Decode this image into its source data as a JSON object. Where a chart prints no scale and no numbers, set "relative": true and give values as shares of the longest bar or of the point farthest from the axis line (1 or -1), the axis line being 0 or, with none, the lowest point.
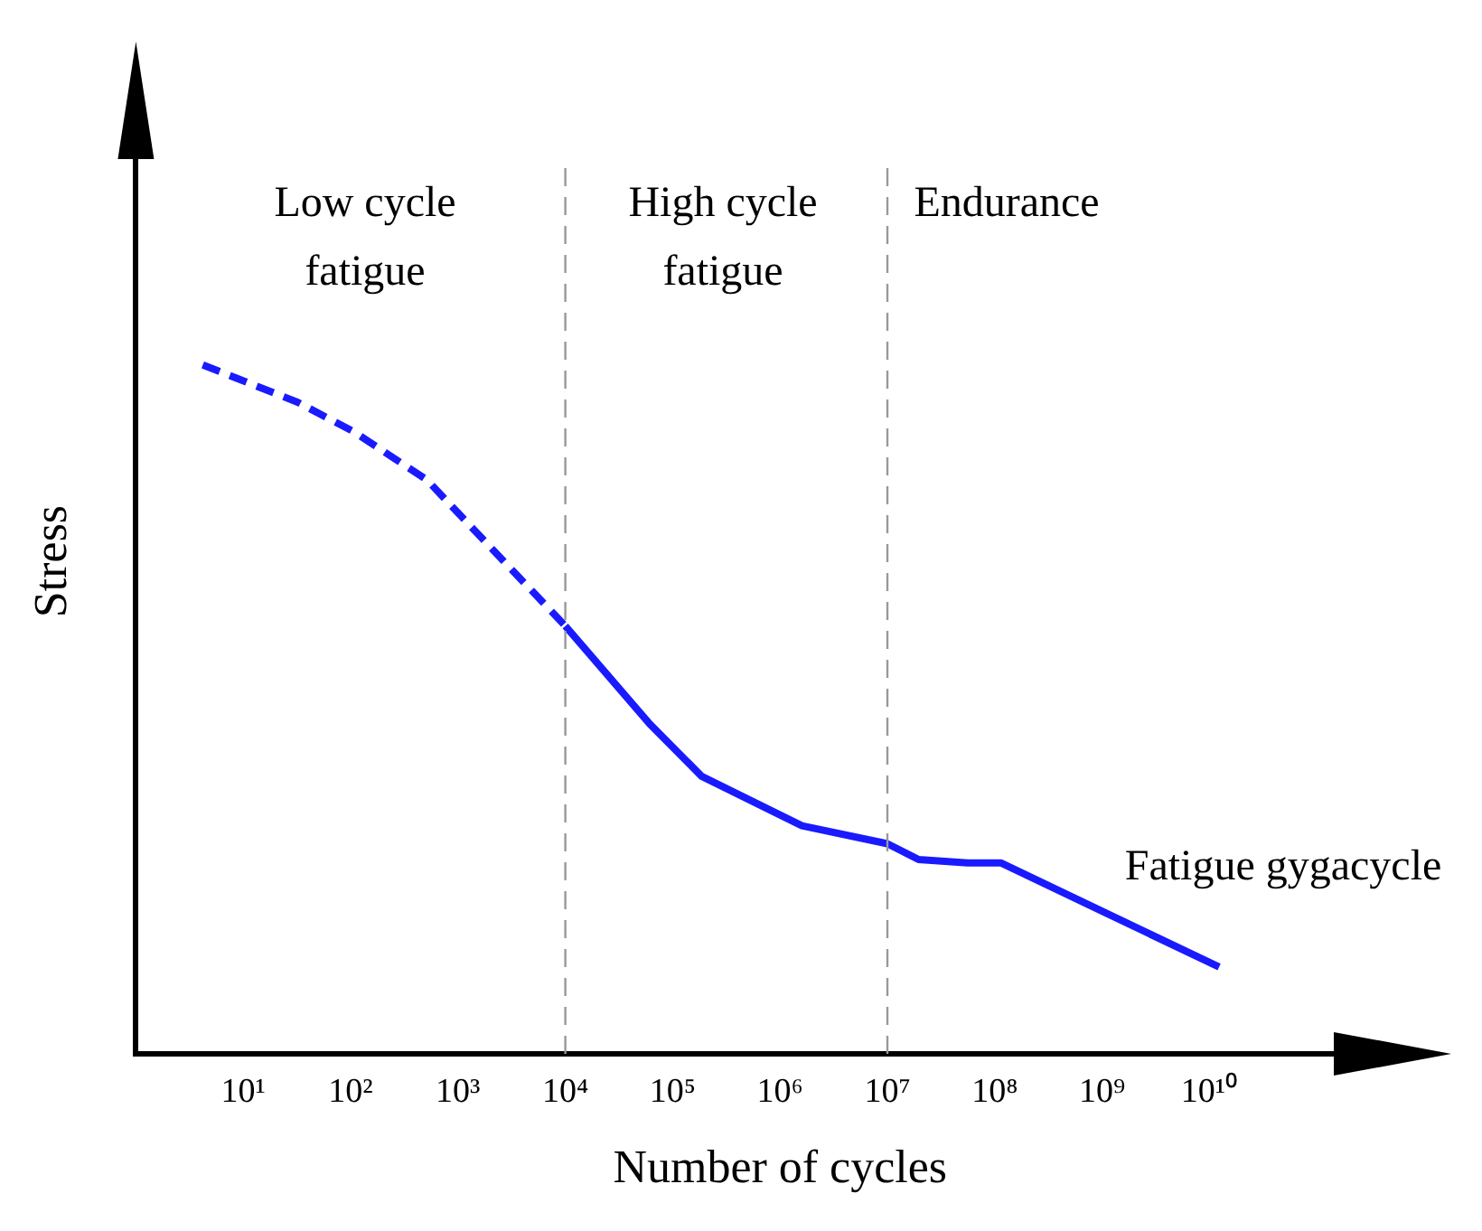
{
  "chart_data": {
    "type": "line",
    "relative": true,
    "log": "x",
    "xlabel": "Number of cycles",
    "ylabel": "Stress",
    "xlim": [
      1,
      1000000000000
    ],
    "xticks": [
      {
        "value": 10,
        "label": "10¹"
      },
      {
        "value": 100,
        "label": "10²"
      },
      {
        "value": 1000,
        "label": "10³"
      },
      {
        "value": 10000,
        "label": "10⁴"
      },
      {
        "value": 100000,
        "label": "10⁵"
      },
      {
        "value": 1000000,
        "label": "10⁶"
      },
      {
        "value": 10000000,
        "label": "10⁷"
      },
      {
        "value": 100000000,
        "label": "10⁸"
      },
      {
        "value": 1000000000,
        "label": "10⁹"
      },
      {
        "value": 10000000000,
        "label": "10¹⁰"
      }
    ],
    "grid": false,
    "legend": false,
    "marker": "none",
    "series": [
      {
        "color": "#1a1aff",
        "line_style": "dashed",
        "x": [
          4.2,
          32,
          107,
          515,
          1660,
          10000
        ],
        "values": [
          1,
          0.946,
          0.903,
          0.833,
          0.749,
          0.621
        ]
      },
      {
        "color": "#1a1aff",
        "line_style": "solid",
        "x": [
          10000,
          61000,
          186000,
          1600000,
          10000000,
          19500000,
          56000000,
          115000000,
          12300000000
        ],
        "values": [
          0.621,
          0.479,
          0.403,
          0.331,
          0.305,
          0.282,
          0.277,
          0.277,
          0.126
        ]
      }
    ],
    "ref_lines": [
      {
        "axis": "x",
        "value": 10000,
        "color": "#999999",
        "line_style": "dashed"
      },
      {
        "axis": "x",
        "value": 10000000,
        "color": "#999999",
        "line_style": "dashed"
      }
    ],
    "annotations": [
      "Low cycle\nfatigue",
      "High cycle\nfatigue",
      "Endurance",
      "Fatigue gygacycle"
    ]
  }
}
